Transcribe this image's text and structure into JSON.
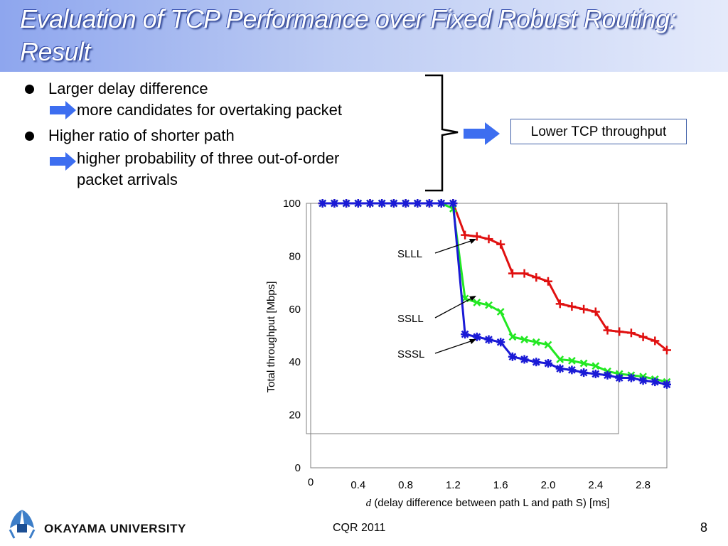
{
  "title": "Evaluation of TCP Performance over Fixed Robust Routing: Result",
  "bullets": [
    {
      "main": "Larger delay difference",
      "sub": [
        "more candidates for overtaking packet"
      ]
    },
    {
      "main": "Higher ratio of shorter path",
      "sub": [
        "higher probability of three out-of-order",
        "packet arrivals"
      ]
    }
  ],
  "conclusion": "Lower TCP throughput",
  "footer": {
    "university": "OKAYAMA  UNIVERSITY",
    "conference": "CQR 2011",
    "page": "8"
  },
  "colors": {
    "title_bg": "#8ea6ee",
    "arrow": "#3d6ef0",
    "red": "#e01010",
    "green": "#22e822",
    "blue": "#1a1ad6"
  },
  "chart_data": {
    "type": "line",
    "xlabel_italic": "d",
    "xlabel": "(delay difference between path L and path S) [ms]",
    "ylabel": "Total throughput [Mbps]",
    "xlim": [
      0,
      3.0
    ],
    "ylim": [
      0,
      100
    ],
    "x_ticks": [
      "0.4",
      "0.8",
      "1.2",
      "1.6",
      "2.0",
      "2.4",
      "2.8"
    ],
    "x_tick_values": [
      0.4,
      0.8,
      1.2,
      1.6,
      2.0,
      2.4,
      2.8
    ],
    "x_zero_label": "0",
    "y_ticks": [
      "0",
      "20",
      "40",
      "60",
      "80",
      "100"
    ],
    "y_tick_values": [
      0,
      20,
      40,
      60,
      80,
      100
    ],
    "x": [
      0.1,
      0.2,
      0.3,
      0.4,
      0.5,
      0.6,
      0.7,
      0.8,
      0.9,
      1.0,
      1.1,
      1.2,
      1.3,
      1.4,
      1.5,
      1.6,
      1.7,
      1.8,
      1.9,
      2.0,
      2.1,
      2.2,
      2.3,
      2.4,
      2.5,
      2.6,
      2.7,
      2.8,
      2.9,
      3.0
    ],
    "series": [
      {
        "name": "SLLL",
        "color": "#e01010",
        "marker": "plus",
        "values": [
          100,
          100,
          100,
          100,
          100,
          100,
          100,
          100,
          100,
          100,
          100,
          100,
          88,
          87.5,
          86.5,
          84.5,
          73.5,
          73.5,
          72,
          70.5,
          62,
          61,
          60,
          59,
          52,
          51.5,
          51,
          49.5,
          48,
          44.5
        ]
      },
      {
        "name": "SSLL",
        "color": "#22e822",
        "marker": "x",
        "values": [
          100,
          100,
          100,
          100,
          100,
          100,
          100,
          100,
          100,
          100,
          100,
          98,
          64,
          62.5,
          61.5,
          59,
          49.5,
          48.5,
          47.5,
          46.5,
          41,
          40.5,
          39.5,
          38.5,
          36.5,
          35.5,
          35,
          34.5,
          33.5,
          32.5
        ]
      },
      {
        "name": "SSSL",
        "color": "#1a1ad6",
        "marker": "asterisk",
        "values": [
          100,
          100,
          100,
          100,
          100,
          100,
          100,
          100,
          100,
          100,
          100,
          100,
          50.5,
          49.5,
          48.5,
          47.5,
          42,
          41,
          40,
          39.5,
          37.5,
          37,
          36,
          35.5,
          35,
          34,
          34,
          33,
          32.5,
          31.5
        ]
      }
    ],
    "annotations": [
      "SLLL",
      "SSLL",
      "SSSL"
    ]
  }
}
